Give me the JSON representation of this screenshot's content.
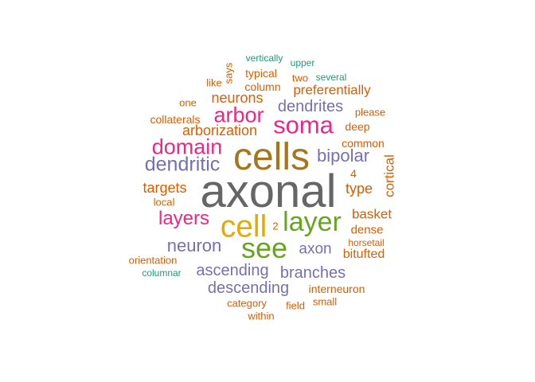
{
  "colors": {
    "gray": "#666666",
    "gold": "#a6761d",
    "yellow": "#e6ab02",
    "green": "#66a61e",
    "magenta": "#e7298a",
    "purple": "#7570b3",
    "orange": "#d95f02",
    "teal": "#1b9e77"
  },
  "words": [
    {
      "text": "axonal",
      "color": "gray",
      "weight": 100
    },
    {
      "text": "cells",
      "color": "gold",
      "weight": 74
    },
    {
      "text": "cell",
      "color": "yellow",
      "weight": 60
    },
    {
      "text": "see",
      "color": "green",
      "weight": 55
    },
    {
      "text": "layer",
      "color": "green",
      "weight": 52
    },
    {
      "text": "soma",
      "color": "magenta",
      "weight": 48
    },
    {
      "text": "arbor",
      "color": "magenta",
      "weight": 42
    },
    {
      "text": "domain",
      "color": "magenta",
      "weight": 42
    },
    {
      "text": "dendritic",
      "color": "purple",
      "weight": 38
    },
    {
      "text": "layers",
      "color": "magenta",
      "weight": 37
    },
    {
      "text": "bipolar",
      "color": "purple",
      "weight": 33
    },
    {
      "text": "dendrites",
      "color": "purple",
      "weight": 31
    },
    {
      "text": "neuron",
      "color": "purple",
      "weight": 34
    },
    {
      "text": "ascending",
      "color": "purple",
      "weight": 31
    },
    {
      "text": "descending",
      "color": "purple",
      "weight": 31
    },
    {
      "text": "branches",
      "color": "purple",
      "weight": 31
    },
    {
      "text": "neurons",
      "color": "orange",
      "weight": 28
    },
    {
      "text": "arborization",
      "color": "orange",
      "weight": 28
    },
    {
      "text": "axon",
      "color": "purple",
      "weight": 29
    },
    {
      "text": "targets",
      "color": "orange",
      "weight": 28
    },
    {
      "text": "type",
      "color": "orange",
      "weight": 28
    },
    {
      "text": "basket",
      "color": "orange",
      "weight": 27
    },
    {
      "text": "preferentially",
      "color": "orange",
      "weight": 26
    },
    {
      "text": "cortical",
      "color": "orange",
      "weight": 27
    },
    {
      "text": "bitufted",
      "color": "orange",
      "weight": 25
    },
    {
      "text": "dense",
      "color": "orange",
      "weight": 24
    },
    {
      "text": "common",
      "color": "orange",
      "weight": 22
    },
    {
      "text": "typical",
      "color": "orange",
      "weight": 22
    },
    {
      "text": "column",
      "color": "orange",
      "weight": 22
    },
    {
      "text": "interneuron",
      "color": "orange",
      "weight": 22
    },
    {
      "text": "deep",
      "color": "orange",
      "weight": 22
    },
    {
      "text": "collaterals",
      "color": "orange",
      "weight": 22
    },
    {
      "text": "4",
      "color": "orange",
      "weight": 22
    },
    {
      "text": "two",
      "color": "orange",
      "weight": 21
    },
    {
      "text": "category",
      "color": "orange",
      "weight": 21
    },
    {
      "text": "local",
      "color": "orange",
      "weight": 20
    },
    {
      "text": "orientation",
      "color": "orange",
      "weight": 20
    },
    {
      "text": "says",
      "color": "orange",
      "weight": 20
    },
    {
      "text": "please",
      "color": "orange",
      "weight": 20
    },
    {
      "text": "one",
      "color": "orange",
      "weight": 19
    },
    {
      "text": "like",
      "color": "orange",
      "weight": 19
    },
    {
      "text": "2",
      "color": "orange",
      "weight": 19
    },
    {
      "text": "horsetail",
      "color": "orange",
      "weight": 19
    },
    {
      "text": "small",
      "color": "orange",
      "weight": 19
    },
    {
      "text": "field",
      "color": "orange",
      "weight": 19
    },
    {
      "text": "within",
      "color": "orange",
      "weight": 19
    },
    {
      "text": "vertically",
      "color": "teal",
      "weight": 18
    },
    {
      "text": "upper",
      "color": "teal",
      "weight": 18
    },
    {
      "text": "several",
      "color": "teal",
      "weight": 18
    },
    {
      "text": "columnar",
      "color": "teal",
      "weight": 18
    }
  ]
}
